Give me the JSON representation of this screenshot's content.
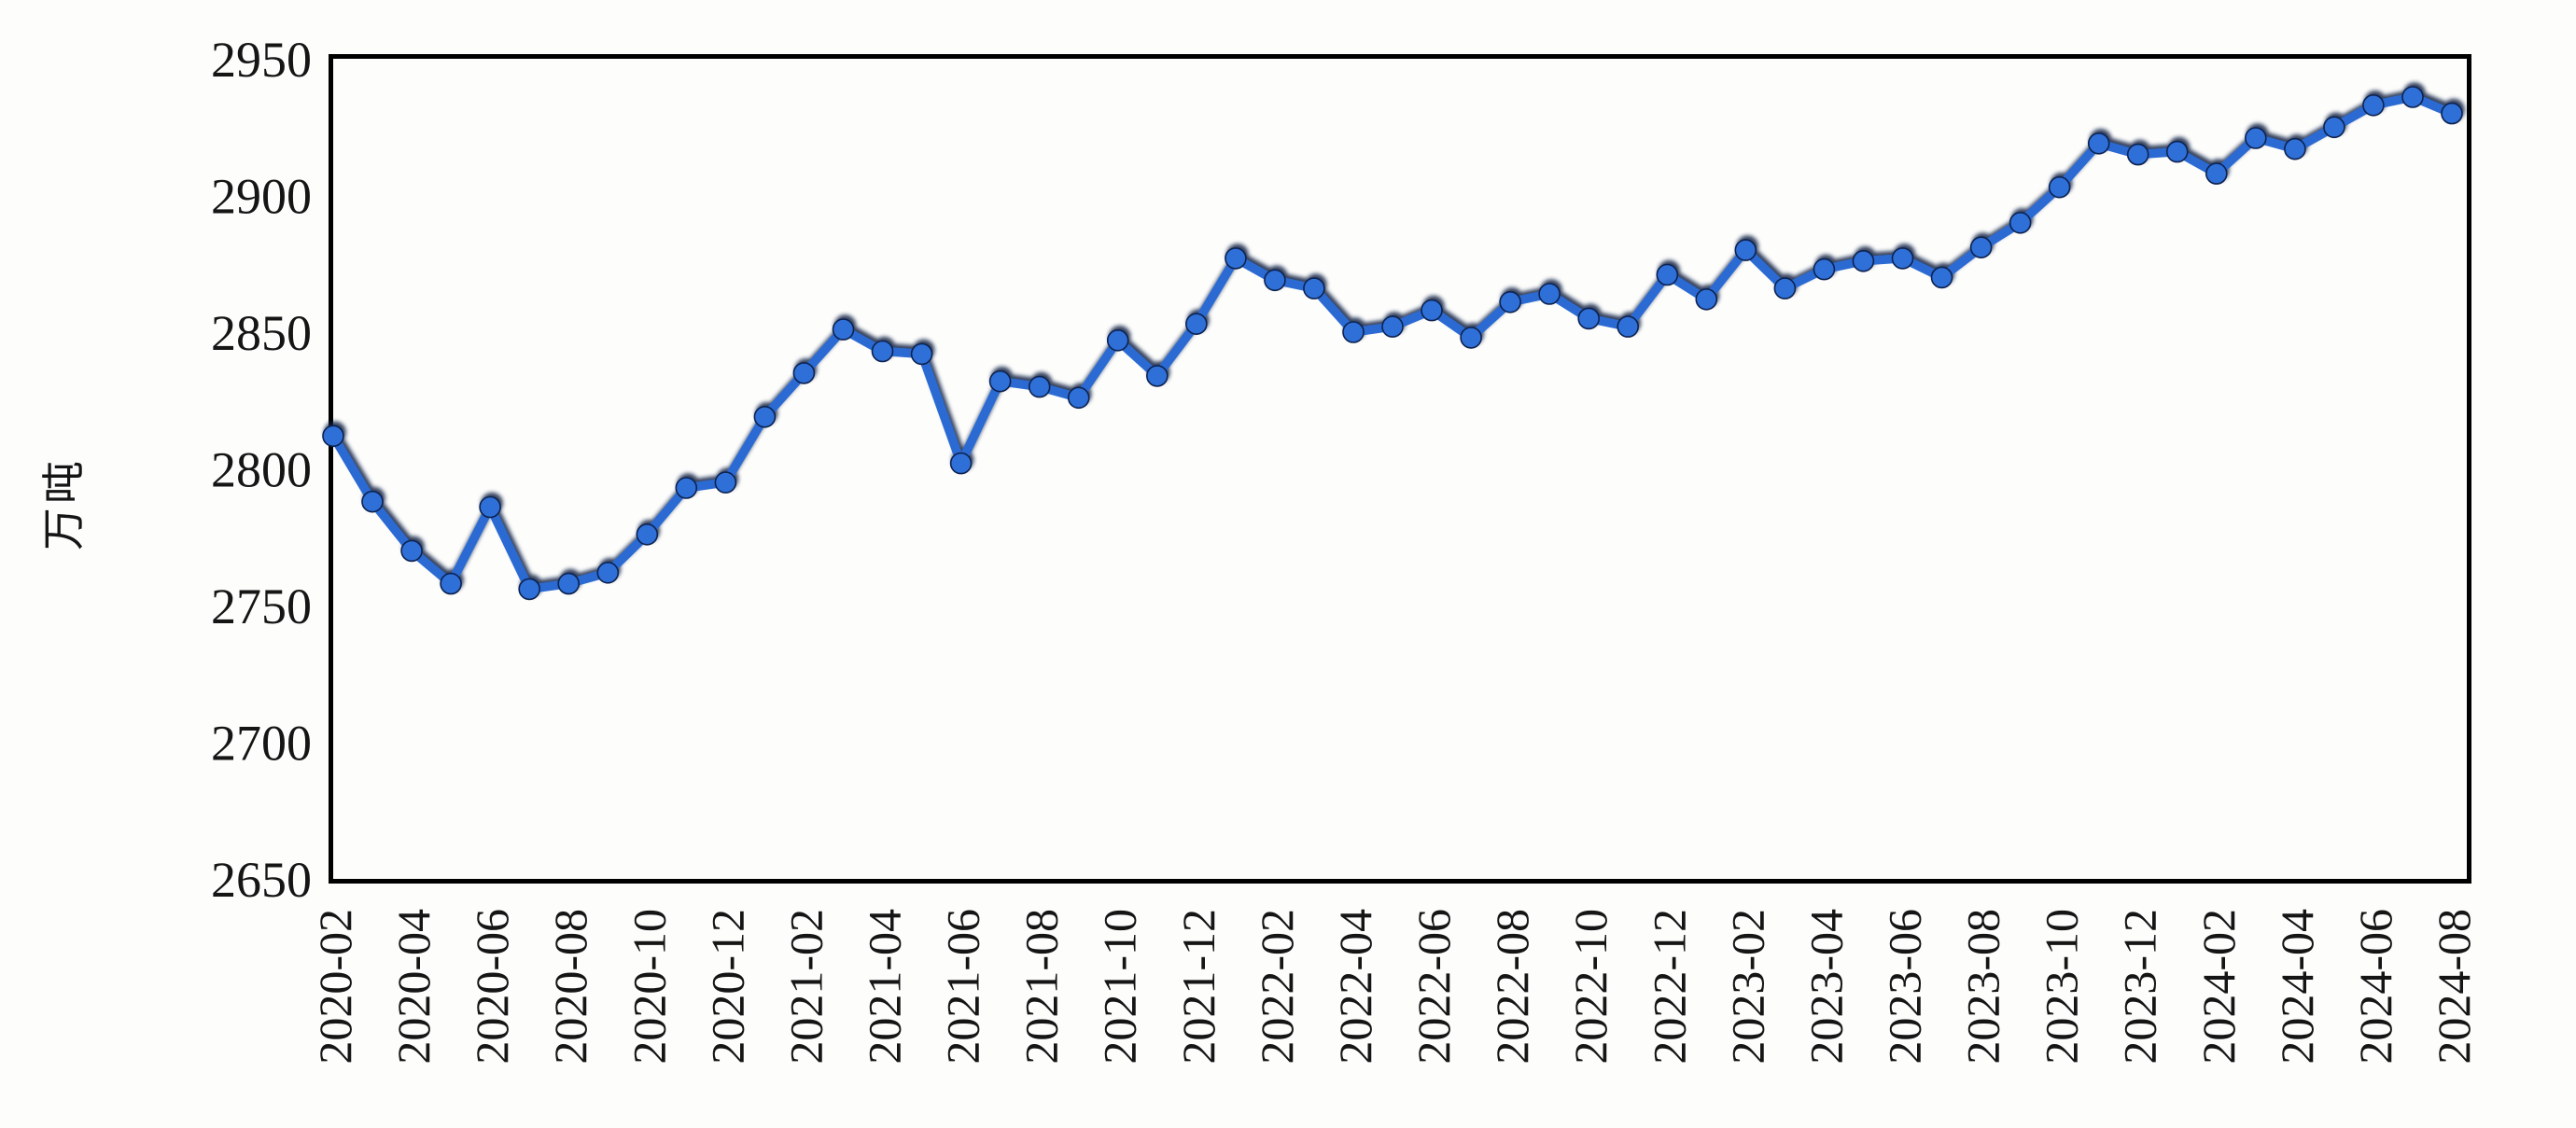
{
  "page": {
    "background": "#fdfdfc"
  },
  "chart_data": {
    "type": "line",
    "title": "",
    "xlabel": "",
    "ylabel": "万吨",
    "ylim": [
      2650,
      2950
    ],
    "grid": false,
    "legend_position": "none",
    "line_color": "#2a6ad2",
    "marker_color": "#2e6fd8",
    "marker_edge_color": "#0d2250",
    "shadow_color": "#0b1d42",
    "axis_color": "#000000",
    "text_color": "#151515",
    "y_ticks": [
      2950,
      2900,
      2850,
      2800,
      2750,
      2700,
      2650
    ],
    "x_tick_labels": [
      "2020-02",
      "2020-04",
      "2020-06",
      "2020-08",
      "2020-10",
      "2020-12",
      "2021-02",
      "2021-04",
      "2021-06",
      "2021-08",
      "2021-10",
      "2021-12",
      "2022-02",
      "2022-04",
      "2022-06",
      "2022-08",
      "2022-10",
      "2022-12",
      "2023-02",
      "2023-04",
      "2023-06",
      "2023-08",
      "2023-10",
      "2023-12",
      "2024-02",
      "2024-04",
      "2024-06",
      "2024-08"
    ],
    "categories": [
      "2020-02",
      "2020-03",
      "2020-04",
      "2020-05",
      "2020-06",
      "2020-07",
      "2020-08",
      "2020-09",
      "2020-10",
      "2020-11",
      "2020-12",
      "2021-01",
      "2021-02",
      "2021-03",
      "2021-04",
      "2021-05",
      "2021-06",
      "2021-07",
      "2021-08",
      "2021-09",
      "2021-10",
      "2021-11",
      "2021-12",
      "2022-01",
      "2022-02",
      "2022-03",
      "2022-04",
      "2022-05",
      "2022-06",
      "2022-07",
      "2022-08",
      "2022-09",
      "2022-10",
      "2022-11",
      "2022-12",
      "2023-01",
      "2023-02",
      "2023-03",
      "2023-04",
      "2023-05",
      "2023-06",
      "2023-07",
      "2023-08",
      "2023-09",
      "2023-10",
      "2023-11",
      "2023-12",
      "2024-01",
      "2024-02",
      "2024-03",
      "2024-04",
      "2024-05",
      "2024-06",
      "2024-07",
      "2024-08"
    ],
    "values": [
      2812,
      2788,
      2770,
      2758,
      2786,
      2756,
      2758,
      2762,
      2776,
      2793,
      2795,
      2819,
      2835,
      2851,
      2843,
      2842,
      2802,
      2832,
      2830,
      2826,
      2847,
      2834,
      2853,
      2877,
      2869,
      2866,
      2850,
      2852,
      2858,
      2848,
      2861,
      2864,
      2855,
      2852,
      2871,
      2862,
      2880,
      2866,
      2873,
      2876,
      2877,
      2870,
      2881,
      2890,
      2903,
      2919,
      2915,
      2916,
      2908,
      2921,
      2917,
      2925,
      2933,
      2936,
      2930
    ]
  }
}
